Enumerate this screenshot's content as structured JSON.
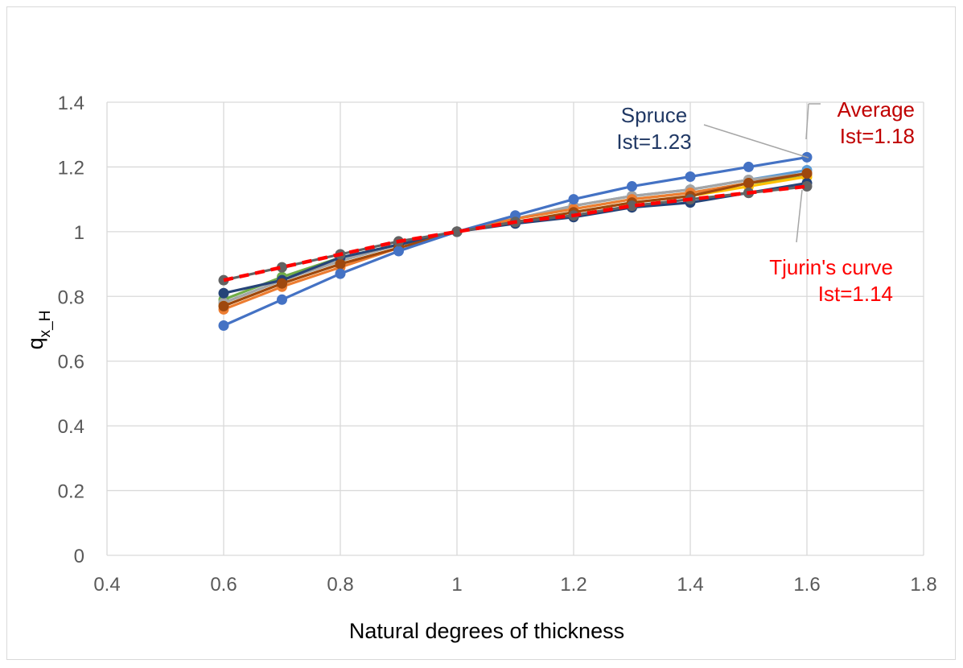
{
  "chart_data": {
    "type": "line",
    "title": "",
    "xlabel": "Natural degrees of thickness",
    "ylabel_main": "q",
    "ylabel_sub": "x_H",
    "xlim": [
      0.4,
      1.8
    ],
    "ylim": [
      0,
      1.4
    ],
    "xticks": [
      "0.4",
      "0.6",
      "0.8",
      "1",
      "1.2",
      "1.4",
      "1.6",
      "1.8"
    ],
    "yticks": [
      "0",
      "0.2",
      "0.4",
      "0.6",
      "0.8",
      "1",
      "1.2",
      "1.4"
    ],
    "grid": true,
    "x": [
      0.6,
      0.7,
      0.8,
      0.9,
      1.0,
      1.1,
      1.2,
      1.3,
      1.4,
      1.5,
      1.6
    ],
    "series": [
      {
        "color": "#70ad47",
        "dashed": false,
        "values": [
          0.79,
          0.86,
          0.92,
          0.96,
          1.0,
          1.04,
          1.07,
          1.1,
          1.12,
          1.15,
          1.17
        ]
      },
      {
        "color": "#5b9bd5",
        "dashed": false,
        "values": [
          0.78,
          0.85,
          0.91,
          0.96,
          1.0,
          1.04,
          1.08,
          1.11,
          1.13,
          1.16,
          1.19
        ]
      },
      {
        "color": "#a5a5a5",
        "dashed": false,
        "values": [
          0.78,
          0.85,
          0.91,
          0.96,
          1.0,
          1.04,
          1.08,
          1.11,
          1.13,
          1.16,
          1.18
        ]
      },
      {
        "color": "#ffc000",
        "dashed": false,
        "values": [
          0.77,
          0.84,
          0.9,
          0.95,
          1.0,
          1.03,
          1.06,
          1.09,
          1.11,
          1.14,
          1.17
        ]
      },
      {
        "color": "#ed7d31",
        "dashed": false,
        "values": [
          0.76,
          0.83,
          0.89,
          0.95,
          1.0,
          1.04,
          1.07,
          1.1,
          1.12,
          1.15,
          1.18
        ]
      },
      {
        "color": "#264478",
        "dashed": false,
        "values": [
          0.81,
          0.85,
          0.92,
          0.96,
          1.0,
          1.025,
          1.045,
          1.075,
          1.09,
          1.12,
          1.15
        ]
      },
      {
        "color": "#9e480e",
        "dashed": false,
        "values": [
          0.77,
          0.84,
          0.9,
          0.95,
          1.0,
          1.03,
          1.06,
          1.09,
          1.11,
          1.15,
          1.18
        ]
      },
      {
        "name": "Spruce",
        "color": "#4472c4",
        "dashed": false,
        "values": [
          0.71,
          0.79,
          0.87,
          0.94,
          1.0,
          1.05,
          1.1,
          1.14,
          1.17,
          1.2,
          1.23
        ]
      },
      {
        "color": "#636363",
        "dashed": false,
        "values": [
          0.85,
          0.89,
          0.93,
          0.97,
          1.0,
          1.03,
          1.05,
          1.08,
          1.1,
          1.12,
          1.14
        ]
      },
      {
        "name": "Tjurin's curve",
        "color": "#ff0000",
        "dashed": true,
        "markers": false,
        "values": [
          0.85,
          0.89,
          0.93,
          0.97,
          1.0,
          1.03,
          1.05,
          1.08,
          1.1,
          1.12,
          1.14
        ]
      }
    ],
    "annotations": [
      {
        "lines": [
          "Spruce",
          "Ist=1.23"
        ],
        "color": "#203864"
      },
      {
        "lines": [
          "Average",
          "Ist=1.18"
        ],
        "color": "#c00000"
      },
      {
        "lines": [
          "Tjurin's curve",
          "Ist=1.14"
        ],
        "color": "#ff0000"
      }
    ]
  }
}
